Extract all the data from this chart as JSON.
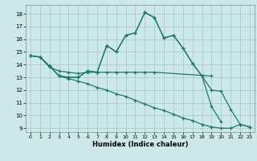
{
  "xlabel": "Humidex (Indice chaleur)",
  "bg_color": "#cce8e8",
  "grid_color": "#aacccc",
  "line_color": "#1a7a6e",
  "xlim": [
    -0.5,
    23.5
  ],
  "ylim": [
    8.7,
    18.7
  ],
  "xticks": [
    0,
    1,
    2,
    3,
    4,
    5,
    6,
    7,
    8,
    9,
    10,
    11,
    12,
    13,
    14,
    15,
    16,
    17,
    18,
    19,
    20,
    21,
    22,
    23
  ],
  "yticks": [
    9,
    10,
    11,
    12,
    13,
    14,
    15,
    16,
    17,
    18
  ],
  "series": [
    {
      "x": [
        0,
        1,
        2,
        3,
        4,
        5,
        6,
        7,
        8,
        9,
        10,
        11,
        12,
        13,
        14,
        15,
        16,
        17,
        18,
        19,
        20
      ],
      "y": [
        14.7,
        14.6,
        13.9,
        13.1,
        13.0,
        13.0,
        13.5,
        13.4,
        15.5,
        15.0,
        16.3,
        16.5,
        18.1,
        17.7,
        16.1,
        16.3,
        15.3,
        14.1,
        13.1,
        10.7,
        9.5
      ]
    },
    {
      "x": [
        0,
        1,
        2,
        3,
        4,
        5,
        6,
        7,
        8,
        9,
        10,
        11,
        12,
        13,
        19
      ],
      "y": [
        14.7,
        14.6,
        13.8,
        13.5,
        13.4,
        13.3,
        13.4,
        13.4,
        13.4,
        13.4,
        13.4,
        13.4,
        13.4,
        13.4,
        13.1
      ]
    },
    {
      "x": [
        0,
        1,
        2,
        3,
        4,
        5,
        6,
        7,
        8,
        9,
        10,
        11,
        12,
        13,
        14,
        15,
        16,
        17,
        18,
        19,
        20,
        21,
        22,
        23
      ],
      "y": [
        14.7,
        14.6,
        13.9,
        13.1,
        12.9,
        12.7,
        12.5,
        12.2,
        12.0,
        11.7,
        11.5,
        11.2,
        10.9,
        10.6,
        10.4,
        10.1,
        9.8,
        9.6,
        9.3,
        9.1,
        9.0,
        9.0,
        9.3,
        9.1
      ]
    },
    {
      "x": [
        2,
        3,
        4,
        5,
        6,
        7,
        8,
        9,
        10,
        11,
        12,
        13,
        14,
        15,
        16,
        17,
        18,
        19,
        20,
        21,
        22,
        23
      ],
      "y": [
        13.9,
        13.1,
        13.0,
        13.0,
        13.5,
        13.4,
        15.5,
        15.0,
        16.3,
        16.5,
        18.1,
        17.7,
        16.1,
        16.3,
        15.3,
        14.1,
        13.1,
        12.0,
        11.9,
        10.5,
        9.3,
        9.1
      ]
    }
  ]
}
